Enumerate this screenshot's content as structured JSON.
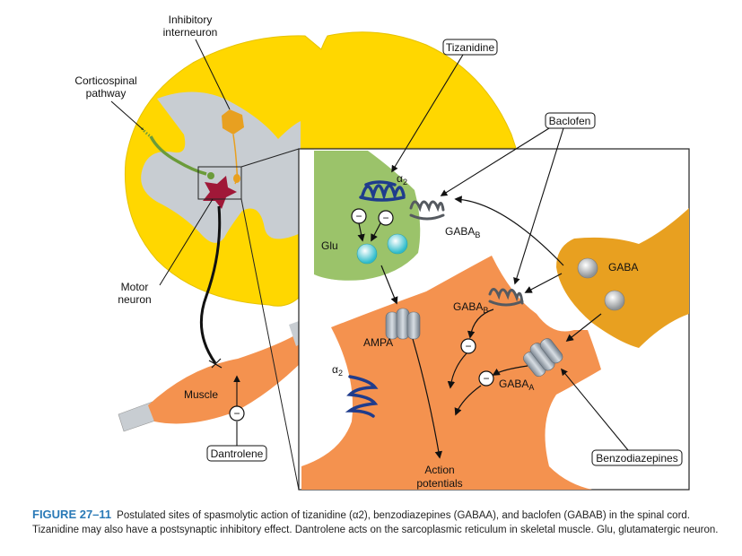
{
  "labels": {
    "inhibitory_interneuron_1": "Inhibitory",
    "inhibitory_interneuron_2": "interneuron",
    "corticospinal_1": "Corticospinal",
    "corticospinal_2": "pathway",
    "motor_neuron_1": "Motor",
    "motor_neuron_2": "neuron",
    "muscle": "Muscle",
    "dantrolene": "Dantrolene",
    "tizanidine": "Tizanidine",
    "baclofen": "Baclofen",
    "benzodiazepines": "Benzodiazepines",
    "alpha2": "α",
    "alpha2_sub": "2",
    "gaba_b": "GABA",
    "gaba_b_sub": "B",
    "gaba_a": "GABA",
    "gaba_a_sub": "A",
    "glu": "Glu",
    "gaba": "GABA",
    "ampa": "AMPA",
    "action_potentials_1": "Action",
    "action_potentials_2": "potentials",
    "minus": "−"
  },
  "caption": {
    "figure": "FIGURE 27–11",
    "text": "Postulated sites of spasmolytic action of tizanidine (α2), benzodiazepines (GABAA), and baclofen (GABAB) in the spinal cord. Tizanidine may also have a postsynaptic inhibitory effect. Dantrolene acts on the sarcoplasmic reticulum in skeletal muscle. Glu, glutamatergic neuron."
  },
  "colors": {
    "white_matter": "#ffd700",
    "gray_matter": "#c8cdd2",
    "interneuron": "#e8a020",
    "motor_neuron": "#a01838",
    "corticospinal": "#6b9b3a",
    "glu_terminal": "#9bc36a",
    "postsynaptic": "#f4924f",
    "gaba_terminal": "#e8a020",
    "alpha2_receptor": "#1f3c8c",
    "gabab_receptor": "#555a60",
    "gaba_a_receptor": "#8d98a4",
    "glu_vesicle": "#3cc3cf",
    "gaba_vesicle": "#b5b8bb",
    "caption_heading": "#2a7ab7"
  }
}
